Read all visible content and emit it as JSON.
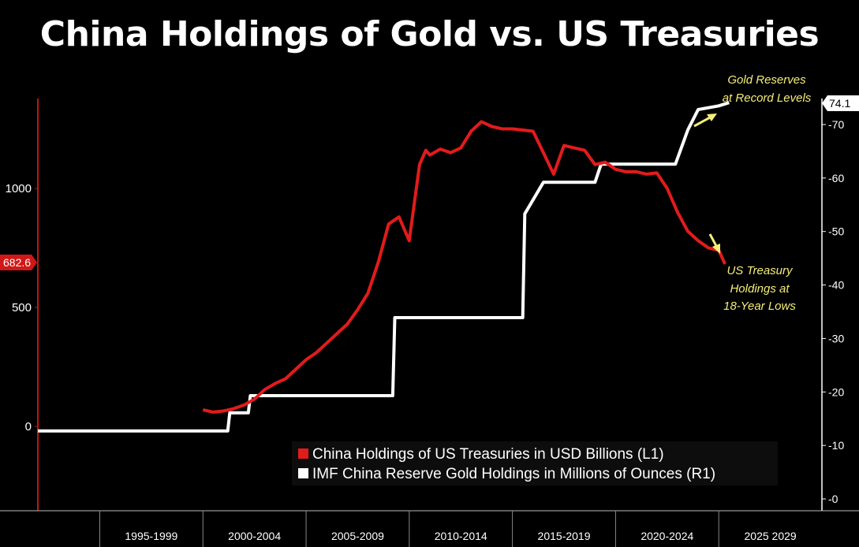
{
  "chart_data": {
    "type": "line",
    "title": "China Holdings of Gold vs. US Treasuries",
    "x_range": [
      1992,
      2030
    ],
    "x_ticks": [
      "1995-1999",
      "2000-2004",
      "2005-2009",
      "2010-2014",
      "2015-2019",
      "2020-2024",
      "2025 2029"
    ],
    "y_left": {
      "ticks": [
        0,
        500,
        1000
      ],
      "range": [
        -350,
        1350
      ]
    },
    "y_right": {
      "ticks": [
        0,
        10,
        20,
        30,
        40,
        50,
        60,
        70
      ],
      "range": [
        0,
        75
      ]
    },
    "grid": false,
    "legend_position": "bottom-right",
    "series": [
      {
        "name": "China Holdings of US Treasuries in USD Billions (L1)",
        "axis": "left",
        "color": "#e31b1b",
        "x": [
          2000.0,
          2000.5,
          2001.0,
          2001.5,
          2002.0,
          2002.5,
          2003.0,
          2003.5,
          2004.0,
          2004.5,
          2005.0,
          2005.5,
          2006.0,
          2006.5,
          2007.0,
          2007.5,
          2008.0,
          2008.5,
          2009.0,
          2009.5,
          2010.0,
          2010.5,
          2010.8,
          2011.0,
          2011.5,
          2012.0,
          2012.5,
          2013.0,
          2013.5,
          2014.0,
          2014.5,
          2015.0,
          2015.5,
          2016.0,
          2016.5,
          2017.0,
          2017.5,
          2018.0,
          2018.5,
          2019.0,
          2019.5,
          2020.0,
          2020.5,
          2021.0,
          2021.5,
          2022.0,
          2022.5,
          2023.0,
          2023.5,
          2024.0,
          2024.5,
          2025.0,
          2025.3
        ],
        "values": [
          70,
          60,
          65,
          75,
          90,
          115,
          155,
          180,
          200,
          240,
          280,
          310,
          350,
          390,
          430,
          490,
          560,
          690,
          850,
          880,
          780,
          1100,
          1160,
          1140,
          1165,
          1150,
          1170,
          1240,
          1280,
          1260,
          1250,
          1250,
          1245,
          1240,
          1150,
          1060,
          1180,
          1170,
          1160,
          1100,
          1110,
          1080,
          1070,
          1070,
          1060,
          1065,
          1000,
          900,
          820,
          780,
          750,
          740,
          682.6
        ]
      },
      {
        "name": "IMF China Reserve Gold Holdings in Millions of Ounces (R1)",
        "axis": "right",
        "color": "#ffffff",
        "x": [
          1992.0,
          2001.2,
          2001.3,
          2002.2,
          2002.3,
          2009.2,
          2009.3,
          2015.5,
          2015.6,
          2016.5,
          2019.0,
          2019.3,
          2022.9,
          2023.5,
          2024.0,
          2025.0,
          2025.5
        ],
        "values": [
          12.7,
          12.7,
          16.1,
          16.1,
          19.3,
          19.3,
          33.9,
          33.9,
          53.3,
          59.2,
          59.2,
          62.6,
          62.6,
          69.0,
          72.8,
          73.5,
          74.1
        ]
      }
    ],
    "last_value_tags": {
      "left": "682.6",
      "right": "74.1"
    },
    "annotations": [
      {
        "id": "gold",
        "lines": [
          "Gold Reserves",
          "at Record Levels"
        ]
      },
      {
        "id": "treasury",
        "lines": [
          "US Treasury",
          "Holdings at",
          "18-Year Lows"
        ]
      }
    ]
  }
}
